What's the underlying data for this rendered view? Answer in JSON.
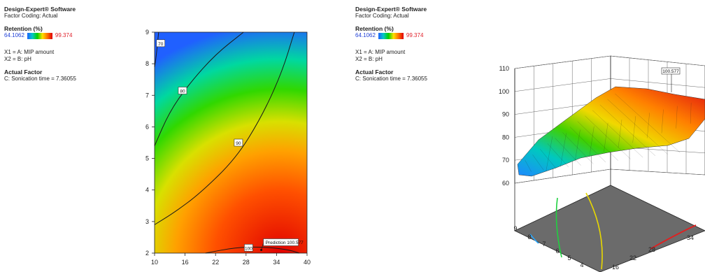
{
  "left_info": {
    "software": "Design-Expert® Software",
    "coding": "Factor Coding: Actual",
    "response": "Retention (%)",
    "scale_min": "64.1062",
    "scale_max": "99.374",
    "x1": "X1 = A: MIP amount",
    "x2": "X2 = B: pH",
    "actual_factor_heading": "Actual Factor",
    "actual_factor_value": "C: Sonication time = 7.36055"
  },
  "right_info": {
    "software": "Design-Expert® Software",
    "coding": "Factor Coding: Actual",
    "response": "Retention (%)",
    "scale_min": "64.1062",
    "scale_max": "99.374",
    "x1": "X1 = A: MIP amount",
    "x2": "X2 = B: pH",
    "actual_factor_heading": "Actual Factor",
    "actual_factor_value": "C: Sonication time = 7.36055"
  },
  "colors": {
    "low": "#1f5fff",
    "high": "#e00000",
    "floor": "#6b6b6b"
  },
  "chart_data": [
    {
      "type": "contour",
      "xlim": [
        10,
        40
      ],
      "ylim": [
        2,
        9
      ],
      "x_ticks": [
        "10",
        "16",
        "22",
        "28",
        "34",
        "40"
      ],
      "y_ticks": [
        "2",
        "3",
        "4",
        "5",
        "6",
        "7",
        "8",
        "9"
      ],
      "contour_levels": [
        "70",
        "80",
        "90",
        "100"
      ],
      "prediction_label": "Prediction 100.577",
      "prediction_point": {
        "x": 31,
        "y": 2.1,
        "value": 100.577
      }
    },
    {
      "type": "surface3d",
      "zlim": [
        60,
        110
      ],
      "z_ticks": [
        "60",
        "70",
        "80",
        "90",
        "100",
        "110"
      ],
      "x_ticks": [
        "16",
        "22",
        "28",
        "34"
      ],
      "y_ticks": [
        "9",
        "8",
        "7",
        "6",
        "5",
        "4"
      ],
      "annotation": "100.577"
    }
  ]
}
